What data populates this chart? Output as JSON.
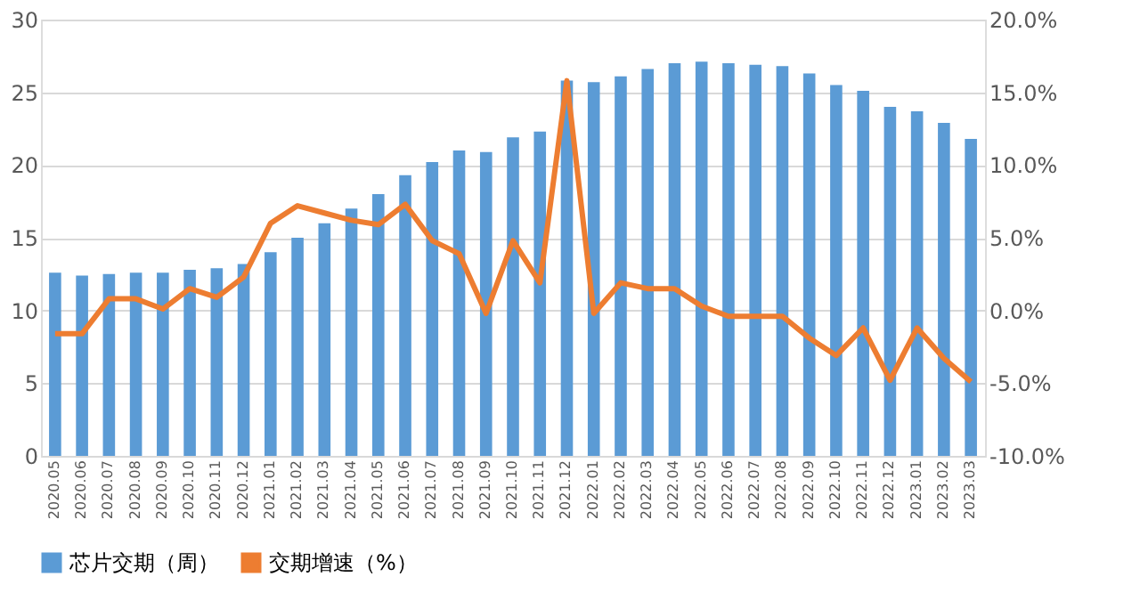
{
  "chart_data": {
    "type": "bar",
    "categories": [
      "2020.05",
      "2020.06",
      "2020.07",
      "2020.08",
      "2020.09",
      "2020.10",
      "2020.11",
      "2020.12",
      "2021.01",
      "2021.02",
      "2021.03",
      "2021.04",
      "2021.05",
      "2021.06",
      "2021.07",
      "2021.08",
      "2021.09",
      "2021.10",
      "2021.11",
      "2021.12",
      "2022.01",
      "2022.02",
      "2022.03",
      "2022.04",
      "2022.05",
      "2022.06",
      "2022.07",
      "2022.08",
      "2022.09",
      "2022.10",
      "2022.11",
      "2022.12",
      "2023.01",
      "2023.02",
      "2023.03"
    ],
    "series": [
      {
        "name": "芯片交期（周）",
        "color": "#5b9bd5",
        "values": [
          12.6,
          12.4,
          12.5,
          12.6,
          12.6,
          12.8,
          12.9,
          13.2,
          14.0,
          15.0,
          16.0,
          17.0,
          18.0,
          19.3,
          20.2,
          21.0,
          20.9,
          21.9,
          22.3,
          25.8,
          25.7,
          26.1,
          26.6,
          27.0,
          27.1,
          27.0,
          26.9,
          26.8,
          26.3,
          25.5,
          25.1,
          24.0,
          23.7,
          22.9,
          21.8
        ]
      },
      {
        "name": "交期增速（%）",
        "type": "line",
        "axis": "y2",
        "color": "#ed7d31",
        "values": [
          -1.6,
          -1.6,
          0.8,
          0.8,
          0.1,
          1.5,
          0.9,
          2.3,
          6.0,
          7.2,
          6.7,
          6.2,
          5.9,
          7.3,
          4.8,
          3.9,
          -0.2,
          4.8,
          1.9,
          15.8,
          -0.2,
          1.9,
          1.5,
          1.5,
          0.3,
          -0.4,
          -0.4,
          -0.4,
          -1.9,
          -3.1,
          -1.2,
          -4.8,
          -1.2,
          -3.3,
          -4.9
        ]
      }
    ],
    "ylim": [
      0,
      30
    ],
    "yticks": [
      0,
      5,
      10,
      15,
      20,
      25,
      30
    ],
    "y2lim": [
      -10,
      20
    ],
    "y2ticks": [
      {
        "value": -10,
        "label": "-10.0%"
      },
      {
        "value": -5,
        "label": "-5.0%"
      },
      {
        "value": 0,
        "label": "0.0%"
      },
      {
        "value": 5,
        "label": "5.0%"
      },
      {
        "value": 10,
        "label": "10.0%"
      },
      {
        "value": 15,
        "label": "15.0%"
      },
      {
        "value": 20,
        "label": "20.0%"
      }
    ],
    "grid": "y",
    "legend": "bottom",
    "marker": "none",
    "line_style": "solid"
  }
}
